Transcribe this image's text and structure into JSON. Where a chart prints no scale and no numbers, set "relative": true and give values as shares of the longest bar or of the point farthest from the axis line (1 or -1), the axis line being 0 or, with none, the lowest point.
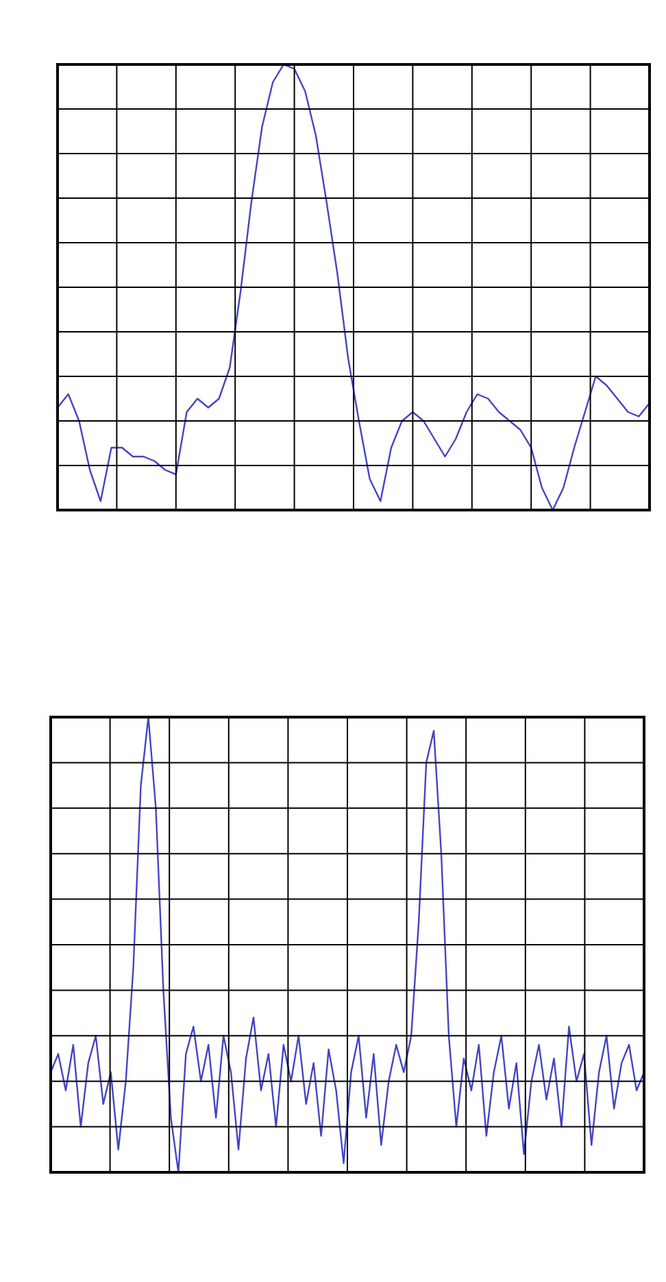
{
  "chart_data": [
    {
      "type": "line",
      "relative": true,
      "grid": true,
      "legend": false,
      "marker": "none",
      "line_style": "solid",
      "tick_labels": false,
      "categories": [
        null,
        null,
        null,
        null,
        null,
        null,
        null,
        null,
        null,
        null,
        null,
        null,
        null,
        null,
        null,
        null,
        null,
        null,
        null,
        null,
        null,
        null,
        null,
        null,
        null,
        null,
        null,
        null,
        null,
        null,
        null,
        null,
        null,
        null,
        null,
        null,
        null,
        null,
        null,
        null,
        null,
        null,
        null,
        null,
        null,
        null,
        null,
        null,
        null,
        null,
        null,
        null,
        null,
        null,
        null,
        null
      ],
      "series": [
        {
          "color": "#4444c4",
          "values": [
            0.23,
            0.26,
            0.2,
            0.09,
            0.02,
            0.14,
            0.14,
            0.12,
            0.12,
            0.11,
            0.09,
            0.08,
            0.22,
            0.25,
            0.23,
            0.25,
            0.32,
            0.49,
            0.69,
            0.86,
            0.96,
            1,
            0.99,
            0.94,
            0.84,
            0.69,
            0.53,
            0.34,
            0.2,
            0.07,
            0.02,
            0.14,
            0.2,
            0.22,
            0.2,
            0.16,
            0.12,
            0.16,
            0.22,
            0.26,
            0.25,
            0.22,
            0.2,
            0.18,
            0.14,
            0.05,
            0,
            0.05,
            0.14,
            0.22,
            0.3,
            0.28,
            0.25,
            0.22,
            0.21,
            0.24
          ]
        }
      ]
    },
    {
      "type": "line",
      "relative": true,
      "grid": true,
      "legend": false,
      "marker": "none",
      "line_style": "solid",
      "tick_labels": false,
      "categories": [
        null,
        null,
        null,
        null,
        null,
        null,
        null,
        null,
        null,
        null,
        null,
        null,
        null,
        null,
        null,
        null,
        null,
        null,
        null,
        null,
        null,
        null,
        null,
        null,
        null,
        null,
        null,
        null,
        null,
        null,
        null,
        null,
        null,
        null,
        null,
        null,
        null,
        null,
        null,
        null,
        null,
        null,
        null,
        null,
        null,
        null,
        null,
        null,
        null,
        null,
        null,
        null,
        null,
        null,
        null,
        null,
        null,
        null,
        null,
        null,
        null,
        null,
        null,
        null,
        null,
        null,
        null,
        null,
        null,
        null,
        null,
        null,
        null,
        null,
        null,
        null,
        null,
        null,
        null,
        null
      ],
      "series": [
        {
          "color": "#4444c4",
          "values": [
            0.22,
            0.26,
            0.18,
            0.28,
            0.1,
            0.24,
            0.3,
            0.15,
            0.22,
            0.05,
            0.2,
            0.45,
            0.85,
            1,
            0.8,
            0.4,
            0.12,
            0,
            0.26,
            0.32,
            0.2,
            0.28,
            0.12,
            0.3,
            0.22,
            0.05,
            0.25,
            0.34,
            0.18,
            0.26,
            0.1,
            0.28,
            0.2,
            0.3,
            0.15,
            0.24,
            0.08,
            0.27,
            0.18,
            0.02,
            0.22,
            0.3,
            0.12,
            0.26,
            0.06,
            0.2,
            0.28,
            0.22,
            0.3,
            0.55,
            0.9,
            0.97,
            0.7,
            0.3,
            0.1,
            0.25,
            0.18,
            0.28,
            0.08,
            0.22,
            0.3,
            0.14,
            0.24,
            0.04,
            0.2,
            0.28,
            0.16,
            0.25,
            0.1,
            0.32,
            0.2,
            0.26,
            0.06,
            0.22,
            0.3,
            0.14,
            0.24,
            0.28,
            0.18,
            0.22
          ]
        }
      ]
    }
  ]
}
